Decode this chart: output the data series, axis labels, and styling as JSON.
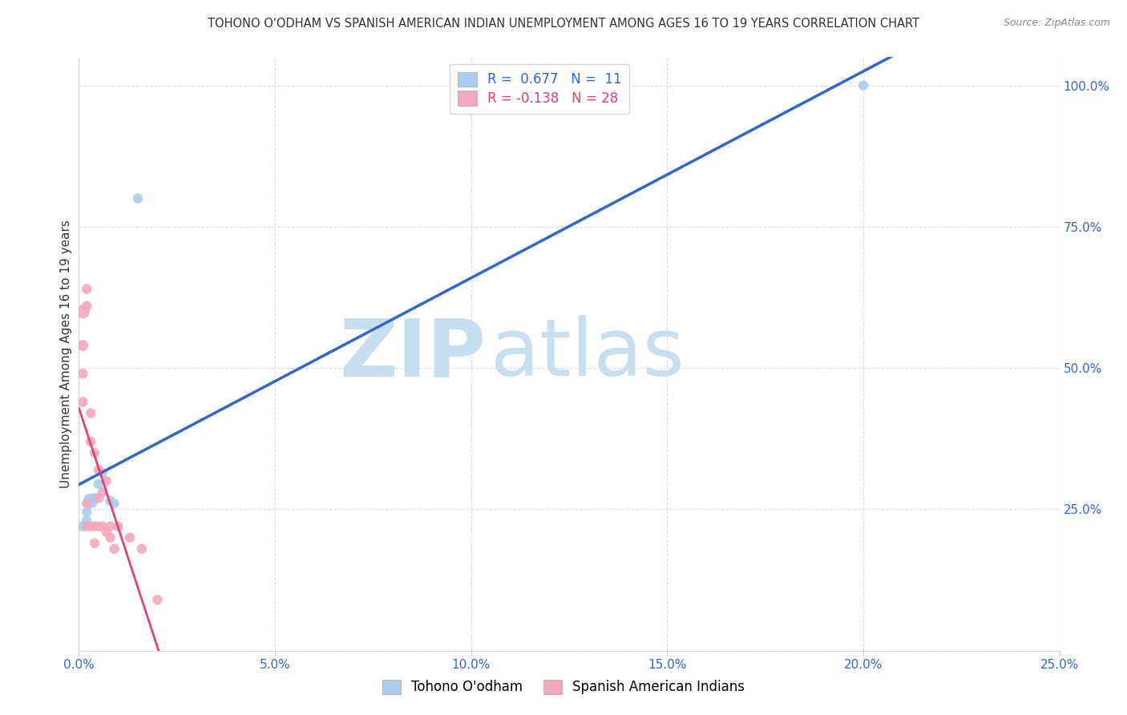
{
  "title": "TOHONO O'ODHAM VS SPANISH AMERICAN INDIAN UNEMPLOYMENT AMONG AGES 16 TO 19 YEARS CORRELATION CHART",
  "source": "Source: ZipAtlas.com",
  "ylabel": "Unemployment Among Ages 16 to 19 years",
  "xlim": [
    0.0,
    0.25
  ],
  "ylim": [
    0.0,
    1.05
  ],
  "xtick_vals": [
    0.0,
    0.05,
    0.1,
    0.15,
    0.2,
    0.25
  ],
  "ytick_vals": [
    0.0,
    0.25,
    0.5,
    0.75,
    1.0
  ],
  "xticklabels": [
    "0.0%",
    "5.0%",
    "10.0%",
    "15.0%",
    "20.0%",
    "25.0%"
  ],
  "yticklabels_right": [
    "",
    "25.0%",
    "50.0%",
    "75.0%",
    "100.0%"
  ],
  "blue_R": "0.677",
  "blue_N": "11",
  "pink_R": "-0.138",
  "pink_N": "28",
  "blue_color": "#aaccee",
  "pink_color": "#f4a8bc",
  "blue_line_color": "#3366cc",
  "pink_line_color": "#dd4477",
  "legend_label_blue": "Tohono O'odham",
  "legend_label_pink": "Spanish American Indians",
  "watermark_zip": "ZIP",
  "watermark_atlas": "atlas",
  "watermark_color_zip": "#c8dff0",
  "watermark_color_atlas": "#c8dff0",
  "blue_points": [
    [
      0.001,
      0.22
    ],
    [
      0.002,
      0.245
    ],
    [
      0.002,
      0.23
    ],
    [
      0.003,
      0.265
    ],
    [
      0.004,
      0.27
    ],
    [
      0.005,
      0.295
    ],
    [
      0.006,
      0.315
    ],
    [
      0.008,
      0.265
    ],
    [
      0.009,
      0.26
    ],
    [
      0.015,
      0.8
    ],
    [
      0.2,
      1.0
    ]
  ],
  "blue_sizes": [
    80,
    80,
    80,
    180,
    80,
    80,
    80,
    80,
    80,
    80,
    80
  ],
  "pink_points": [
    [
      0.001,
      0.6
    ],
    [
      0.001,
      0.54
    ],
    [
      0.001,
      0.49
    ],
    [
      0.001,
      0.44
    ],
    [
      0.002,
      0.64
    ],
    [
      0.002,
      0.61
    ],
    [
      0.002,
      0.26
    ],
    [
      0.002,
      0.22
    ],
    [
      0.003,
      0.42
    ],
    [
      0.003,
      0.37
    ],
    [
      0.003,
      0.22
    ],
    [
      0.004,
      0.35
    ],
    [
      0.004,
      0.22
    ],
    [
      0.004,
      0.19
    ],
    [
      0.005,
      0.32
    ],
    [
      0.005,
      0.27
    ],
    [
      0.005,
      0.22
    ],
    [
      0.006,
      0.28
    ],
    [
      0.006,
      0.22
    ],
    [
      0.007,
      0.3
    ],
    [
      0.007,
      0.21
    ],
    [
      0.008,
      0.22
    ],
    [
      0.008,
      0.2
    ],
    [
      0.009,
      0.18
    ],
    [
      0.01,
      0.22
    ],
    [
      0.013,
      0.2
    ],
    [
      0.016,
      0.18
    ],
    [
      0.02,
      0.09
    ]
  ],
  "pink_sizes": [
    150,
    100,
    80,
    80,
    80,
    80,
    80,
    80,
    80,
    80,
    80,
    80,
    80,
    80,
    80,
    80,
    80,
    80,
    80,
    80,
    80,
    80,
    80,
    80,
    80,
    80,
    80,
    80
  ],
  "bg_color": "#ffffff",
  "grid_color": "#dddddd",
  "axis_color": "#3366cc",
  "title_color": "#333333"
}
